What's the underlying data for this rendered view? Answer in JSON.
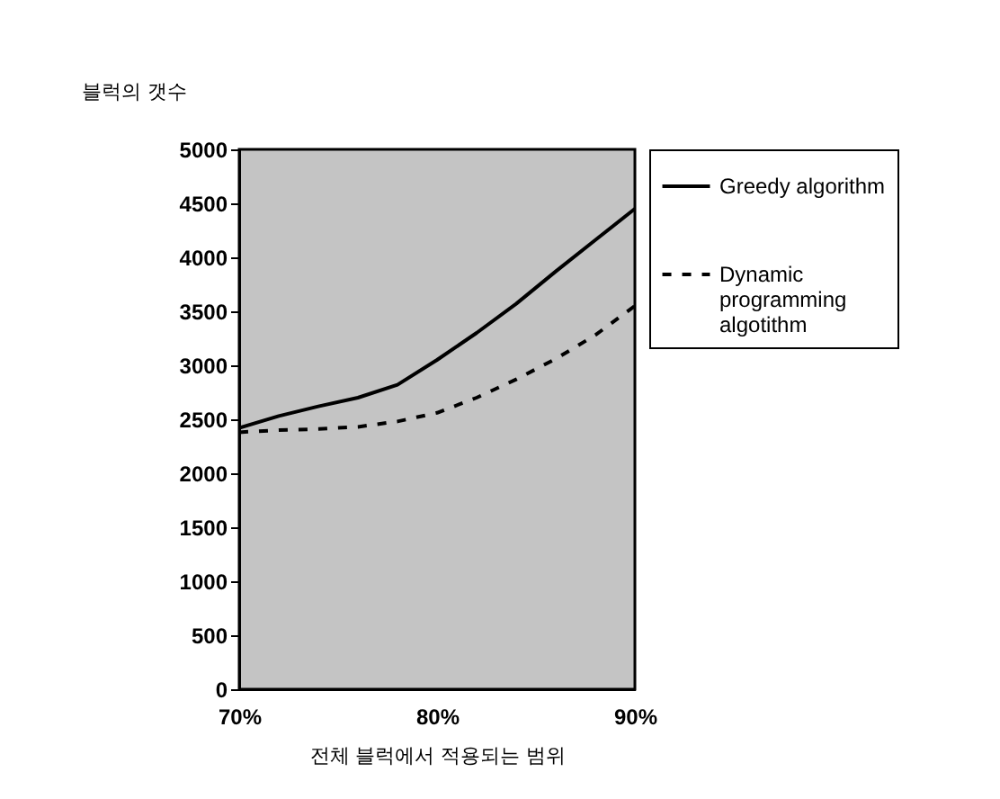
{
  "chart_data": {
    "type": "line",
    "ylabel": "블럭의 갯수",
    "xlabel": "전체 블럭에서 적용되는 범위",
    "x": [
      70,
      72,
      74,
      76,
      78,
      80,
      82,
      84,
      86,
      88,
      90
    ],
    "series": [
      {
        "name": "Greedy algorithm",
        "color": "#000000",
        "line_style": "solid",
        "values": [
          2420,
          2530,
          2620,
          2700,
          2820,
          3050,
          3300,
          3570,
          3870,
          4160,
          4450
        ]
      },
      {
        "name": "Dynamic programming algotithm",
        "color": "#000000",
        "line_style": "dashed",
        "values": [
          2380,
          2400,
          2410,
          2430,
          2480,
          2560,
          2700,
          2870,
          3060,
          3280,
          3550
        ]
      }
    ],
    "xlim": [
      70,
      90
    ],
    "xticks": [
      {
        "value": 70,
        "label": "70%"
      },
      {
        "value": 80,
        "label": "80%"
      },
      {
        "value": 90,
        "label": "90%"
      }
    ],
    "ylim": [
      0,
      5000
    ],
    "yticks": [
      0,
      500,
      1000,
      1500,
      2000,
      2500,
      3000,
      3500,
      4000,
      4500,
      5000
    ],
    "grid": false,
    "legend": "right",
    "marker": "none"
  }
}
